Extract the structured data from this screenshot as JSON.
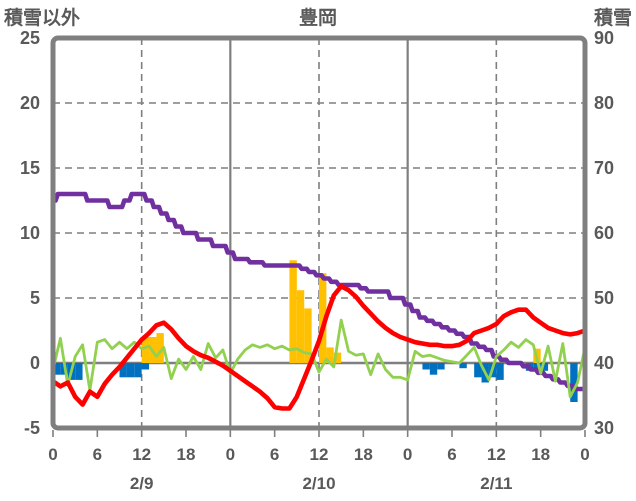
{
  "header": {
    "left_axis_label": "積雪以外",
    "title": "豊岡",
    "right_axis_label": "積雪"
  },
  "chart_data": {
    "type": "combo-line-bar",
    "title": "豊岡",
    "x_unit": "hour",
    "x_range_hours": [
      0,
      72
    ],
    "x_tick_hours": [
      0,
      6,
      12,
      18,
      24,
      30,
      36,
      42,
      48,
      54,
      60,
      66,
      72
    ],
    "x_tick_labels": [
      "0",
      "6",
      "12",
      "18",
      "0",
      "6",
      "12",
      "18",
      "0",
      "6",
      "12",
      "18",
      "0"
    ],
    "date_labels": [
      {
        "label": "2/9",
        "hour": 12
      },
      {
        "label": "2/10",
        "hour": 36
      },
      {
        "label": "2/11",
        "hour": 60
      }
    ],
    "left_axis": {
      "label": "積雪以外",
      "min": -5,
      "max": 25,
      "ticks": [
        25,
        20,
        15,
        10,
        5,
        0,
        -5
      ]
    },
    "right_axis": {
      "label": "積雪",
      "min": 30,
      "max": 90,
      "ticks": [
        90,
        80,
        70,
        60,
        50,
        40,
        30
      ]
    },
    "grid": {
      "h_dashed_left_values": [
        20,
        15,
        10,
        5
      ],
      "h_solid_left_values": [
        0
      ],
      "v_dashed_hours": [
        12,
        36,
        60
      ],
      "v_solid_hours": [
        24,
        48
      ]
    },
    "colors": {
      "snow_depth": "#7030A0",
      "temperature": "#FF0000",
      "wind": "#92D050",
      "precip_bar": "#FFC000",
      "negative_bar": "#0070C0",
      "grid": "#7F7F7F",
      "text": "#595959"
    },
    "series": [
      {
        "name": "snow-depth-line",
        "axis": "right",
        "style": "step-line",
        "values_cm": [
          65,
          66,
          66,
          66,
          66,
          65,
          65,
          65,
          64,
          64,
          65,
          66,
          66,
          65,
          64,
          63,
          62,
          61,
          60,
          60,
          59,
          59,
          58,
          58,
          57,
          56,
          56,
          55.5,
          55.5,
          55,
          55,
          55,
          55,
          55,
          54.5,
          54,
          53.5,
          53,
          52.5,
          52,
          52,
          52,
          51.5,
          51,
          51,
          51,
          50,
          50,
          49,
          48,
          47,
          46.5,
          46,
          45.5,
          45,
          44.5,
          44,
          43,
          42.5,
          42,
          41,
          40.5,
          40,
          40,
          39.5,
          39,
          38.5,
          38,
          37.5,
          37,
          36.5,
          36,
          36
        ]
      },
      {
        "name": "temperature-line",
        "axis": "left",
        "style": "line",
        "values": [
          -1.4,
          -1.8,
          -1.5,
          -2.6,
          -3.2,
          -2.2,
          -2.6,
          -1.6,
          -0.9,
          -0.3,
          0.4,
          1.1,
          1.8,
          2.3,
          2.9,
          3.1,
          2.6,
          1.9,
          1.3,
          0.9,
          0.6,
          0.4,
          0.1,
          -0.2,
          -0.6,
          -1.0,
          -1.4,
          -1.8,
          -2.2,
          -2.7,
          -3.4,
          -3.5,
          -3.5,
          -2.6,
          -1.2,
          0.2,
          1.7,
          3.6,
          5.2,
          5.9,
          5.6,
          5.1,
          4.4,
          3.8,
          3.2,
          2.7,
          2.3,
          2.0,
          1.8,
          1.6,
          1.5,
          1.4,
          1.4,
          1.3,
          1.3,
          1.4,
          1.7,
          2.3,
          2.5,
          2.7,
          3.0,
          3.6,
          3.9,
          4.1,
          4.1,
          3.5,
          3.1,
          2.7,
          2.5,
          2.3,
          2.2,
          2.3,
          2.5
        ]
      },
      {
        "name": "wind-line",
        "axis": "left",
        "style": "line",
        "values": [
          -0.5,
          1.9,
          -1.7,
          0.5,
          1.4,
          -2.1,
          1.6,
          1.8,
          1.1,
          1.6,
          1.1,
          1.6,
          1.1,
          1.3,
          0.5,
          1.2,
          -1.2,
          0.3,
          -0.5,
          0.5,
          -0.5,
          1.5,
          0.4,
          1.0,
          -0.8,
          0.3,
          1.0,
          1.4,
          1.2,
          1.4,
          1.1,
          1.3,
          1.0,
          1.1,
          0.8,
          0.7,
          -0.7,
          0.3,
          -0.3,
          3.3,
          0.9,
          0.6,
          0.7,
          -0.9,
          0.7,
          -0.5,
          -1.1,
          -1.1,
          -1.3,
          0.9,
          0.5,
          0.6,
          0.4,
          0.2,
          0.1,
          0.0,
          0.6,
          1.2,
          -0.2,
          -1.3,
          0.5,
          1.0,
          1.6,
          1.2,
          1.8,
          1.4,
          -0.8,
          1.3,
          -1.4,
          1.5,
          -2.6,
          -1.5,
          1.2
        ]
      },
      {
        "name": "precip-bars",
        "axis": "left",
        "style": "bar",
        "bars": [
          {
            "hour": 12,
            "value": 2.0
          },
          {
            "hour": 13,
            "value": 2.0
          },
          {
            "hour": 14,
            "value": 2.3
          },
          {
            "hour": 32,
            "value": 7.9
          },
          {
            "hour": 33,
            "value": 5.6
          },
          {
            "hour": 34,
            "value": 4.2
          },
          {
            "hour": 36,
            "value": 6.9
          },
          {
            "hour": 37,
            "value": 1.2
          },
          {
            "hour": 38,
            "value": 0.8
          },
          {
            "hour": 65,
            "value": 1.1
          }
        ]
      },
      {
        "name": "negative-bars",
        "axis": "left",
        "style": "bar",
        "bars": [
          {
            "hour": 0,
            "value": -0.9
          },
          {
            "hour": 1,
            "value": -0.9
          },
          {
            "hour": 2,
            "value": -1.3
          },
          {
            "hour": 3,
            "value": -1.3
          },
          {
            "hour": 9,
            "value": -1.1
          },
          {
            "hour": 10,
            "value": -1.1
          },
          {
            "hour": 11,
            "value": -1.1
          },
          {
            "hour": 12,
            "value": -0.5
          },
          {
            "hour": 50,
            "value": -0.5
          },
          {
            "hour": 51,
            "value": -0.9
          },
          {
            "hour": 52,
            "value": -0.5
          },
          {
            "hour": 55,
            "value": -0.4
          },
          {
            "hour": 57,
            "value": -1.1
          },
          {
            "hour": 58,
            "value": -1.5
          },
          {
            "hour": 59,
            "value": -1.1
          },
          {
            "hour": 60,
            "value": -1.3
          },
          {
            "hour": 64,
            "value": -0.6
          },
          {
            "hour": 65,
            "value": -0.6
          },
          {
            "hour": 66,
            "value": -0.6
          },
          {
            "hour": 70,
            "value": -3.0
          }
        ]
      }
    ]
  }
}
